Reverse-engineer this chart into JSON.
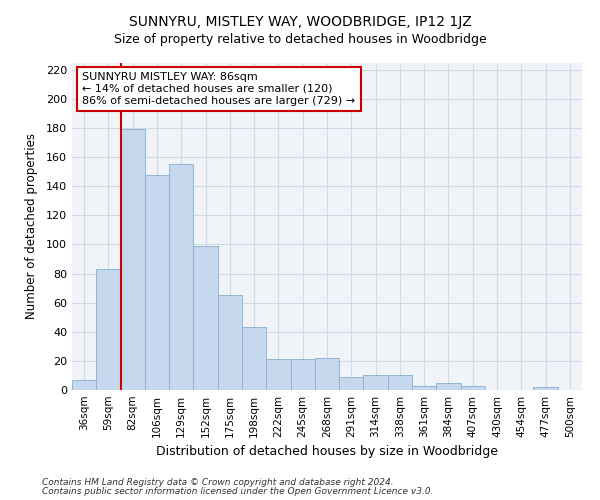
{
  "title1": "SUNNYRU, MISTLEY WAY, WOODBRIDGE, IP12 1JZ",
  "title2": "Size of property relative to detached houses in Woodbridge",
  "xlabel": "Distribution of detached houses by size in Woodbridge",
  "ylabel": "Number of detached properties",
  "categories": [
    "36sqm",
    "59sqm",
    "82sqm",
    "106sqm",
    "129sqm",
    "152sqm",
    "175sqm",
    "198sqm",
    "222sqm",
    "245sqm",
    "268sqm",
    "291sqm",
    "314sqm",
    "338sqm",
    "361sqm",
    "384sqm",
    "407sqm",
    "430sqm",
    "454sqm",
    "477sqm",
    "500sqm"
  ],
  "values": [
    7,
    83,
    179,
    148,
    155,
    99,
    65,
    43,
    21,
    21,
    22,
    9,
    10,
    10,
    3,
    5,
    3,
    0,
    0,
    2,
    0
  ],
  "bar_color": "#c5d8ed",
  "bar_edge_color": "#88afd0",
  "annotation_text": "SUNNYRU MISTLEY WAY: 86sqm\n← 14% of detached houses are smaller (120)\n86% of semi-detached houses are larger (729) →",
  "annotation_box_color": "white",
  "annotation_box_edge": "#cc0000",
  "redline_color": "#cc0000",
  "ylim": [
    0,
    225
  ],
  "yticks": [
    0,
    20,
    40,
    60,
    80,
    100,
    120,
    140,
    160,
    180,
    200,
    220
  ],
  "footer1": "Contains HM Land Registry data © Crown copyright and database right 2024.",
  "footer2": "Contains public sector information licensed under the Open Government Licence v3.0.",
  "bg_color": "#ffffff",
  "plot_bg_color": "#f0f4f8",
  "grid_color": "#d0dae6"
}
